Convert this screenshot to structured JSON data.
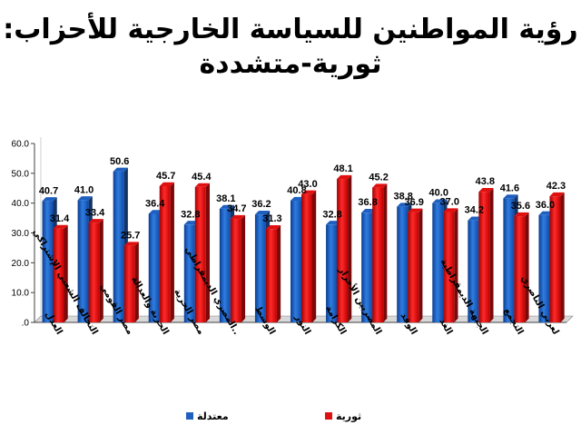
{
  "title_line1": "رؤية المواطنين للسياسة الخارجية للأحزاب:",
  "title_line2": "ثورية-متشددة",
  "chart_data": {
    "type": "bar",
    "categories": [
      "العدل",
      "التحالف الشعبي الإشتراكي",
      "مصر القومي",
      "الحرية والعدالة",
      "مصر الحرية",
      "المصري الديمقراطي..",
      "الوسط",
      "النور",
      "الكرامة",
      "المصريين الأحرار",
      "الوفد",
      "الغد",
      "الجبهة الديمقراطية",
      "التجمع",
      "لعربي الناصري"
    ],
    "series": [
      {
        "name": "معتدلة",
        "color": "#1f5fbf",
        "values": [
          40.7,
          41.0,
          50.6,
          36.4,
          32.8,
          38.1,
          36.2,
          40.8,
          32.8,
          36.8,
          38.8,
          40.0,
          34.2,
          41.6,
          36.0
        ]
      },
      {
        "name": "ثورية",
        "color": "#e01010",
        "values": [
          31.4,
          33.4,
          25.7,
          45.7,
          45.4,
          34.7,
          31.3,
          43.0,
          48.1,
          45.2,
          36.9,
          37.0,
          43.8,
          35.6,
          42.3
        ]
      }
    ],
    "value_labels": [
      [
        "40.7",
        "41.0",
        "50.6",
        "36.4",
        "32.8",
        "38.1",
        "36.2",
        "40.8",
        "32.8",
        "36.8",
        "38.8",
        "40.0",
        "34.2",
        "41.6",
        "36.0"
      ],
      [
        "31.4",
        "33.4",
        "25.7",
        "45.7",
        "45.4",
        "34.7",
        "31.3",
        "43.0",
        "48.1",
        "45.2",
        "36.9",
        "37.0",
        "43.8",
        "35.6",
        "42.3"
      ]
    ],
    "ylim": [
      0,
      60
    ],
    "yticks": [
      ".0",
      "10.0",
      "20.0",
      "30.0",
      "40.0",
      "50.0",
      "60.0"
    ],
    "grid": false,
    "legend_position": "bottom"
  }
}
